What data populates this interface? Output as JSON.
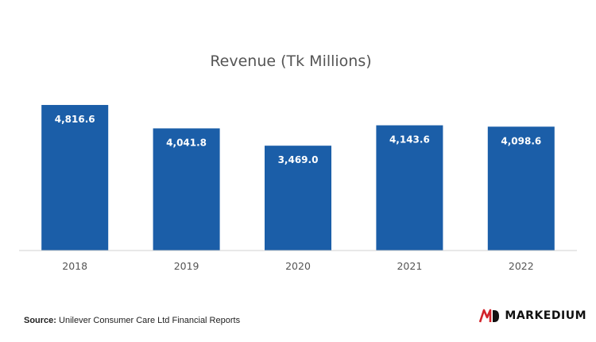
{
  "chart_data": {
    "type": "bar",
    "title": "Revenue (Tk Millions)",
    "categories": [
      "2018",
      "2019",
      "2020",
      "2021",
      "2022"
    ],
    "values": [
      4816.6,
      4041.8,
      3469.0,
      4143.6,
      4098.6
    ],
    "value_labels": [
      "4,816.6",
      "4,041.8",
      "3,469.0",
      "4,143.6",
      "4,098.6"
    ],
    "xlabel": "",
    "ylabel": "",
    "ylim": [
      0,
      5000
    ],
    "grid": false,
    "bar_color": "#1b5ea8"
  },
  "source": {
    "label": "Source:",
    "text": "Unilever Consumer Care Ltd Financial Reports"
  },
  "logo": {
    "text": "MARKEDIUM",
    "accent_color": "#d2232a"
  }
}
